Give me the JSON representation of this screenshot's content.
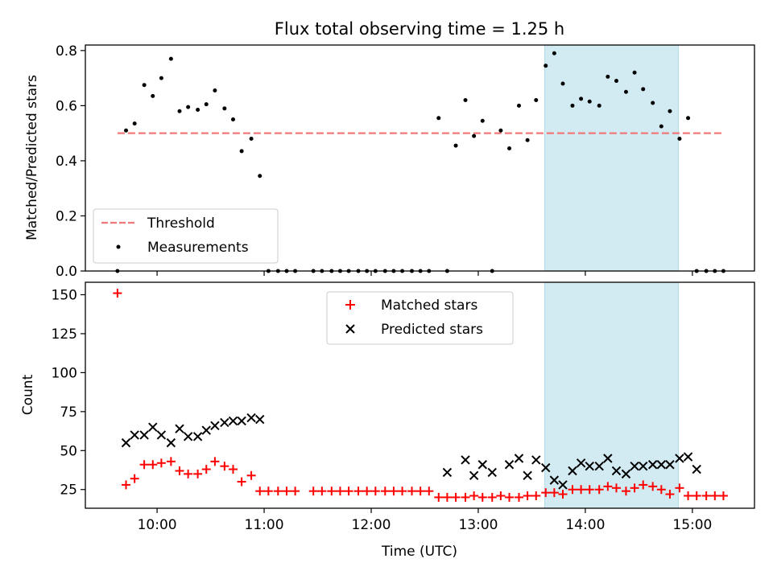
{
  "chart_data": [
    {
      "type": "scatter",
      "title": "Flux total observing time = 1.25 h",
      "xlabel": "",
      "ylabel": "Matched/Predicted stars",
      "xlim": [
        9.33,
        15.58
      ],
      "ylim": [
        0,
        0.82
      ],
      "yticks": [
        0.0,
        0.2,
        0.4,
        0.6,
        0.8
      ],
      "ytick_labels": [
        "0.0",
        "0.2",
        "0.4",
        "0.6",
        "0.8"
      ],
      "highlight_span": [
        13.62,
        14.87
      ],
      "threshold": {
        "name": "Threshold",
        "value": 0.5,
        "x": [
          9.63,
          15.3
        ],
        "color": "#f07878"
      },
      "series": [
        {
          "name": "Measurements",
          "color": "#000000",
          "x": [
            9.63,
            9.71,
            9.79,
            9.88,
            9.96,
            10.04,
            10.13,
            10.21,
            10.29,
            10.38,
            10.46,
            10.54,
            10.63,
            10.71,
            10.79,
            10.88,
            10.96,
            11.04,
            11.13,
            11.21,
            11.29,
            11.46,
            11.54,
            11.63,
            11.71,
            11.79,
            11.88,
            11.96,
            12.04,
            12.13,
            12.21,
            12.29,
            12.38,
            12.46,
            12.54,
            12.63,
            12.71,
            12.79,
            12.88,
            12.96,
            13.04,
            13.13,
            13.21,
            13.29,
            13.38,
            13.46,
            13.54,
            13.63,
            13.71,
            13.79,
            13.88,
            13.96,
            14.04,
            14.13,
            14.21,
            14.29,
            14.38,
            14.46,
            14.54,
            14.63,
            14.71,
            14.79,
            14.88,
            14.96,
            15.04,
            15.13,
            15.21,
            15.29
          ],
          "y": [
            0,
            0.51,
            0.535,
            0.675,
            0.635,
            0.7,
            0.77,
            0.58,
            0.595,
            0.585,
            0.605,
            0.655,
            0.59,
            0.55,
            0.435,
            0.48,
            0.345,
            0,
            0,
            0,
            0,
            0,
            0,
            0,
            0,
            0,
            0,
            0,
            0,
            0,
            0,
            0,
            0,
            0,
            0,
            0.555,
            0,
            0.455,
            0.62,
            0.49,
            0.545,
            0,
            0.51,
            0.445,
            0.6,
            0.475,
            0.62,
            0.745,
            0.79,
            0.68,
            0.6,
            0.625,
            0.615,
            0.6,
            0.705,
            0.69,
            0.65,
            0.72,
            0.66,
            0.61,
            0.525,
            0.58,
            0.48,
            0.555,
            0,
            0,
            0,
            0
          ]
        }
      ],
      "legend": {
        "location": "lower-left",
        "entries": [
          "Threshold",
          "Measurements"
        ]
      }
    },
    {
      "type": "scatter",
      "title": "",
      "xlabel": "Time (UTC)",
      "ylabel": "Count",
      "xlim": [
        9.33,
        15.58
      ],
      "ylim": [
        13,
        158
      ],
      "yticks": [
        25,
        50,
        75,
        100,
        125,
        150
      ],
      "ytick_labels": [
        "25",
        "50",
        "75",
        "100",
        "125",
        "150"
      ],
      "xticks": [
        10,
        11,
        12,
        13,
        14,
        15
      ],
      "xtick_labels": [
        "10:00",
        "11:00",
        "12:00",
        "13:00",
        "14:00",
        "15:00"
      ],
      "highlight_span": [
        13.62,
        14.87
      ],
      "series": [
        {
          "name": "Matched stars",
          "color": "#ff0000",
          "marker": "+",
          "x": [
            9.63,
            9.71,
            9.79,
            9.88,
            9.96,
            10.04,
            10.13,
            10.21,
            10.29,
            10.38,
            10.46,
            10.54,
            10.63,
            10.71,
            10.79,
            10.88,
            10.96,
            11.04,
            11.13,
            11.21,
            11.29,
            11.46,
            11.54,
            11.63,
            11.71,
            11.79,
            11.88,
            11.96,
            12.04,
            12.13,
            12.21,
            12.29,
            12.38,
            12.46,
            12.54,
            12.63,
            12.71,
            12.79,
            12.88,
            12.96,
            13.04,
            13.13,
            13.21,
            13.29,
            13.38,
            13.46,
            13.54,
            13.63,
            13.71,
            13.79,
            13.88,
            13.96,
            14.04,
            14.13,
            14.21,
            14.29,
            14.38,
            14.46,
            14.54,
            14.63,
            14.71,
            14.79,
            14.88,
            14.96,
            15.04,
            15.13,
            15.21,
            15.29
          ],
          "y": [
            151,
            28,
            32,
            41,
            41,
            42,
            43,
            37,
            35,
            35,
            38,
            43,
            40,
            38,
            30,
            34,
            24,
            24,
            24,
            24,
            24,
            24,
            24,
            24,
            24,
            24,
            24,
            24,
            24,
            24,
            24,
            24,
            24,
            24,
            24,
            20,
            20,
            20,
            20,
            21,
            20,
            20,
            21,
            20,
            20,
            21,
            21,
            23,
            23,
            22,
            25,
            25,
            25,
            25,
            27,
            26,
            24,
            26,
            28,
            27,
            25,
            22,
            26,
            21,
            21,
            21,
            21,
            21
          ]
        },
        {
          "name": "Predicted stars",
          "color": "#000000",
          "marker": "x",
          "x": [
            9.71,
            9.79,
            9.88,
            9.96,
            10.04,
            10.13,
            10.21,
            10.29,
            10.38,
            10.46,
            10.54,
            10.63,
            10.71,
            10.79,
            10.88,
            10.96,
            12.71,
            12.88,
            12.96,
            13.04,
            13.13,
            13.29,
            13.38,
            13.46,
            13.54,
            13.63,
            13.71,
            13.79,
            13.88,
            13.96,
            14.04,
            14.13,
            14.21,
            14.29,
            14.38,
            14.46,
            14.54,
            14.63,
            14.71,
            14.79,
            14.88,
            14.96,
            15.04
          ],
          "y": [
            55,
            60,
            60,
            65,
            60,
            55,
            64,
            59,
            59,
            63,
            66,
            68,
            69,
            69,
            71,
            70,
            36,
            44,
            34,
            41,
            36,
            41,
            45,
            34,
            44,
            39,
            31,
            28,
            37,
            42,
            40,
            40,
            45,
            37,
            35,
            40,
            40,
            41,
            41,
            41,
            45,
            46,
            38
          ]
        }
      ],
      "legend": {
        "location": "upper-center",
        "entries": [
          "Matched stars",
          "Predicted stars"
        ]
      }
    }
  ]
}
